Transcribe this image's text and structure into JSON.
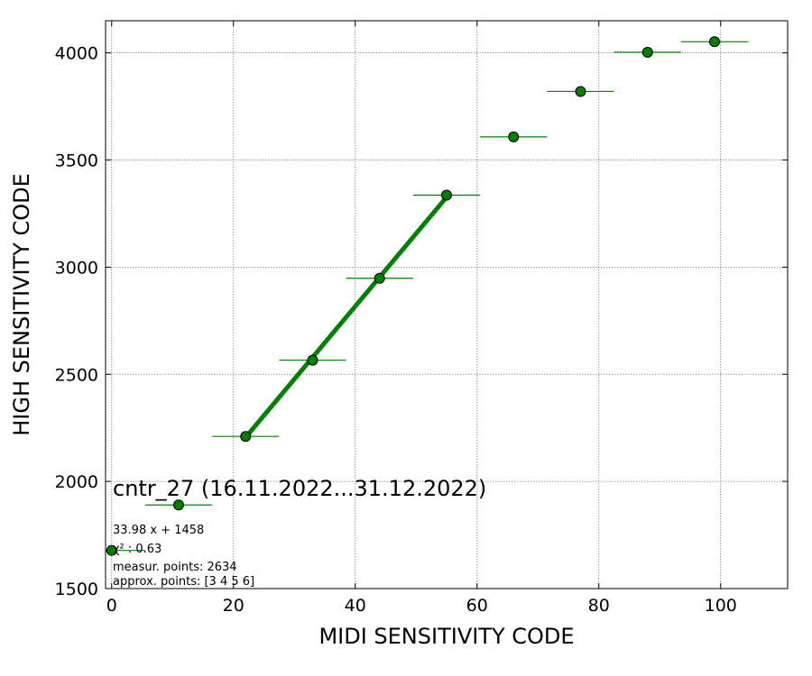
{
  "chart_data": {
    "type": "scatter",
    "title": "",
    "xlabel": "MIDI SENSITIVITY CODE",
    "ylabel": "HIGH SENSITIVITY CODE",
    "xlim": [
      -1,
      111
    ],
    "ylim": [
      1500,
      4150
    ],
    "x_ticks": [
      0,
      20,
      40,
      60,
      80,
      100
    ],
    "y_ticks": [
      1500,
      2000,
      2500,
      3000,
      3500,
      4000
    ],
    "grid": true,
    "colors": {
      "marker": "#008000",
      "marker_edge": "#000000",
      "errorbar": "#008000",
      "fit_line": "#008000"
    },
    "points": [
      {
        "x": 0,
        "y": 1678,
        "xerr": 5.5
      },
      {
        "x": 11,
        "y": 1890,
        "xerr": 5.5
      },
      {
        "x": 22,
        "y": 2210,
        "xerr": 5.5
      },
      {
        "x": 33,
        "y": 2566,
        "xerr": 5.5
      },
      {
        "x": 44,
        "y": 2948,
        "xerr": 5.5
      },
      {
        "x": 55,
        "y": 3336,
        "xerr": 5.5
      },
      {
        "x": 66,
        "y": 3608,
        "xerr": 5.5
      },
      {
        "x": 77,
        "y": 3820,
        "xerr": 5.5
      },
      {
        "x": 88,
        "y": 4003,
        "xerr": 5.5
      },
      {
        "x": 99,
        "y": 4052,
        "xerr": 5.5
      }
    ],
    "fit_line": {
      "slope": 33.98,
      "intercept": 1458,
      "x_from": 22,
      "x_to": 55
    },
    "annotations": {
      "sensor_label": "cntr_27 (16.11.2022...31.12.2022)",
      "equation": "33.98 x + 1458",
      "chi2": "χ² : 0.63",
      "measured_points": "measur. points: 2634",
      "approx_points": "approx. points: [3 4 5 6]"
    }
  }
}
